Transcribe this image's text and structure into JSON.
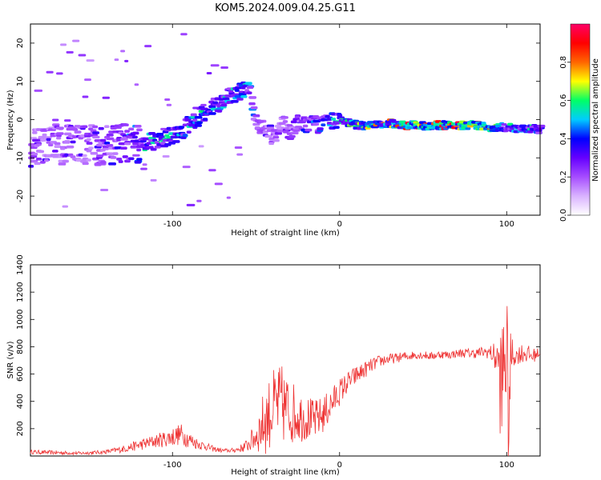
{
  "title": "KOM5.2024.009.04.25.G11",
  "chart_data": [
    {
      "type": "heatmap",
      "xlabel": "Height of straight line (km)",
      "ylabel": "Frequency (Hz)",
      "xlim": [
        -185,
        120
      ],
      "ylim": [
        -25,
        25
      ],
      "xticks": [
        -100,
        0,
        100
      ],
      "yticks": [
        -20,
        -10,
        0,
        10,
        20
      ],
      "colorbar": {
        "label": "Normalized spectral amplitude",
        "range": [
          0,
          1
        ],
        "ticks": [
          0.0,
          0.2,
          0.4,
          0.6,
          0.8
        ],
        "colormap": [
          "#ffffff",
          "#d9b3ff",
          "#a64dff",
          "#6600ff",
          "#0000ff",
          "#00ccff",
          "#00ff66",
          "#ffff00",
          "#ff6600",
          "#ff0000",
          "#ff0066"
        ]
      },
      "ridge": [
        [
          -185,
          -7,
          0.3
        ],
        [
          -170,
          -6.5,
          0.3
        ],
        [
          -155,
          -6.5,
          0.3
        ],
        [
          -140,
          -7,
          0.35
        ],
        [
          -130,
          -6.5,
          0.4
        ],
        [
          -120,
          -6,
          0.5
        ],
        [
          -110,
          -5.5,
          0.55
        ],
        [
          -100,
          -4,
          0.5
        ],
        [
          -95,
          -3,
          0.55
        ],
        [
          -90,
          -1,
          0.5
        ],
        [
          -85,
          0.5,
          0.55
        ],
        [
          -80,
          2,
          0.55
        ],
        [
          -75,
          3.5,
          0.5
        ],
        [
          -70,
          5,
          0.5
        ],
        [
          -65,
          6.5,
          0.55
        ],
        [
          -60,
          7.5,
          0.6
        ],
        [
          -55,
          8,
          0.45
        ],
        [
          -50,
          -1,
          0.35
        ],
        [
          -45,
          -2,
          0.3
        ],
        [
          -40,
          -5,
          0.3
        ],
        [
          -35,
          -1,
          0.3
        ],
        [
          -30,
          -3,
          0.3
        ],
        [
          -25,
          -1,
          0.35
        ],
        [
          -20,
          -1.5,
          0.4
        ],
        [
          -10,
          -1,
          0.5
        ],
        [
          0,
          0,
          0.55
        ],
        [
          10,
          -1.5,
          0.6
        ],
        [
          20,
          -1.5,
          0.7
        ],
        [
          30,
          -1,
          0.75
        ],
        [
          40,
          -1.5,
          0.85
        ],
        [
          50,
          -1.5,
          0.9
        ],
        [
          60,
          -1.5,
          0.9
        ],
        [
          70,
          -1.5,
          0.85
        ],
        [
          80,
          -1.5,
          0.85
        ],
        [
          90,
          -2,
          0.8
        ],
        [
          100,
          -2,
          0.5
        ],
        [
          110,
          -2.5,
          0.55
        ],
        [
          120,
          -2.5,
          0.5
        ]
      ]
    },
    {
      "type": "line",
      "xlabel": "Height of straight line (km)",
      "ylabel": "SNR (v/v)",
      "xlim": [
        -185,
        120
      ],
      "ylim": [
        0,
        1400
      ],
      "xticks": [
        -100,
        0,
        100
      ],
      "yticks": [
        200,
        400,
        600,
        800,
        1000,
        1200,
        1400
      ],
      "color": "#ee3333",
      "x": [
        -185,
        -170,
        -155,
        -140,
        -130,
        -120,
        -110,
        -100,
        -95,
        -90,
        -85,
        -80,
        -75,
        -70,
        -65,
        -60,
        -55,
        -50,
        -45,
        -40,
        -35,
        -30,
        -25,
        -20,
        -15,
        -10,
        -5,
        0,
        5,
        10,
        15,
        20,
        25,
        30,
        35,
        40,
        45,
        50,
        55,
        60,
        65,
        70,
        75,
        80,
        85,
        90,
        95,
        97,
        99,
        101,
        103,
        105,
        110,
        115,
        120
      ],
      "y": [
        30,
        25,
        20,
        30,
        50,
        80,
        110,
        140,
        160,
        120,
        90,
        70,
        50,
        40,
        40,
        50,
        80,
        150,
        250,
        350,
        380,
        330,
        300,
        280,
        260,
        300,
        380,
        470,
        540,
        590,
        630,
        670,
        700,
        710,
        720,
        730,
        740,
        740,
        730,
        745,
        740,
        750,
        755,
        750,
        760,
        760,
        700,
        400,
        900,
        300,
        750,
        730,
        760,
        730,
        760
      ],
      "amp": [
        15,
        15,
        12,
        15,
        25,
        40,
        50,
        70,
        80,
        60,
        40,
        30,
        20,
        15,
        15,
        25,
        50,
        120,
        250,
        280,
        300,
        250,
        200,
        170,
        150,
        140,
        120,
        100,
        80,
        70,
        60,
        50,
        45,
        40,
        35,
        35,
        30,
        30,
        30,
        30,
        30,
        30,
        35,
        35,
        40,
        50,
        150,
        600,
        600,
        600,
        150,
        60,
        80,
        60,
        30
      ]
    }
  ]
}
